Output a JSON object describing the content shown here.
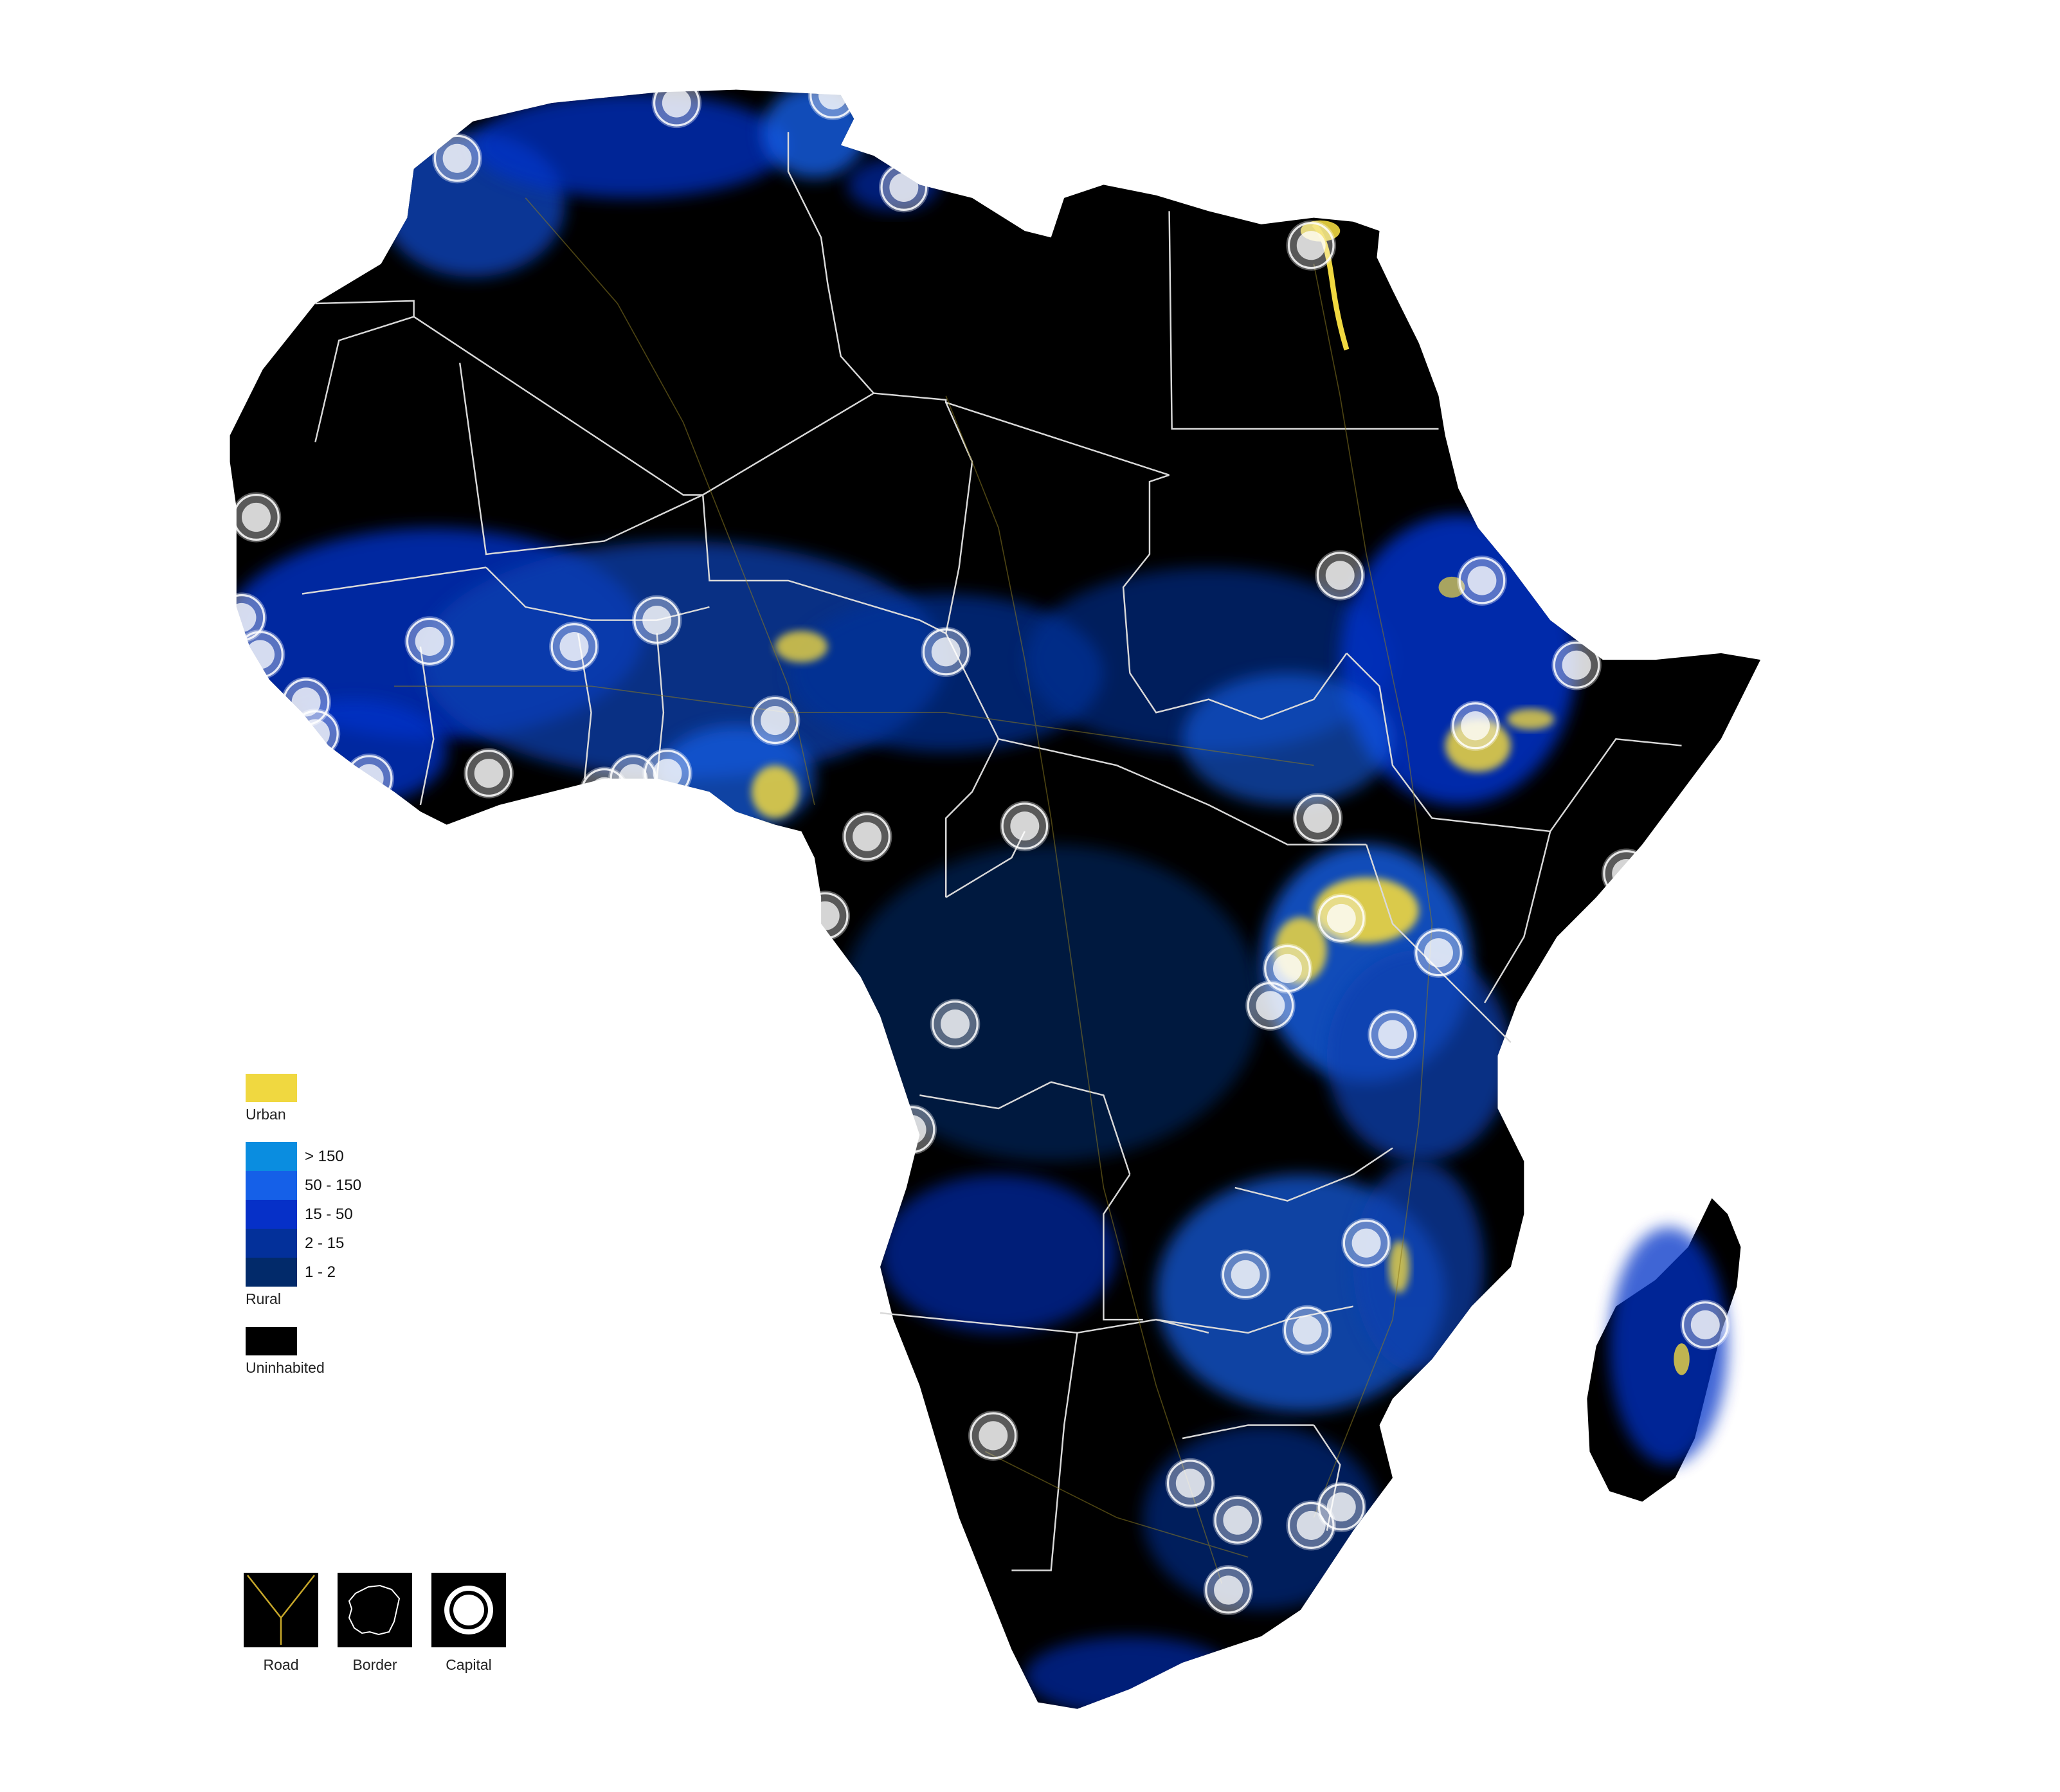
{
  "colors": {
    "background": "#ffffff",
    "land": "#000000",
    "border": "#d9d9d9",
    "road": "#8a7a20",
    "urban": "#f0d840",
    "rural_gt150": "#0a8de0",
    "rural_50_150": "#1560e8",
    "rural_15_50": "#0630c8",
    "rural_2_15": "#03309a",
    "rural_1_2": "#022a6a",
    "uninhabited": "#000000",
    "capital": "#ffffff"
  },
  "legend": {
    "urban": {
      "label": "Urban",
      "color": "#f0d840"
    },
    "rural": {
      "label": "Rural",
      "classes": [
        {
          "label": "> 150",
          "color": "#0a8de0"
        },
        {
          "label": "50 - 150",
          "color": "#1560e8"
        },
        {
          "label": "15 - 50",
          "color": "#0630c8"
        },
        {
          "label": "2 - 15",
          "color": "#03309a"
        },
        {
          "label": "1 - 2",
          "color": "#022a6a"
        }
      ]
    },
    "uninhabited": {
      "label": "Uninhabited",
      "color": "#000000"
    }
  },
  "symbols": {
    "road": {
      "label": "Road",
      "icon": "road-icon"
    },
    "border": {
      "label": "Border",
      "icon": "border-icon"
    },
    "capital": {
      "label": "Capital",
      "icon": "capital-icon"
    }
  }
}
